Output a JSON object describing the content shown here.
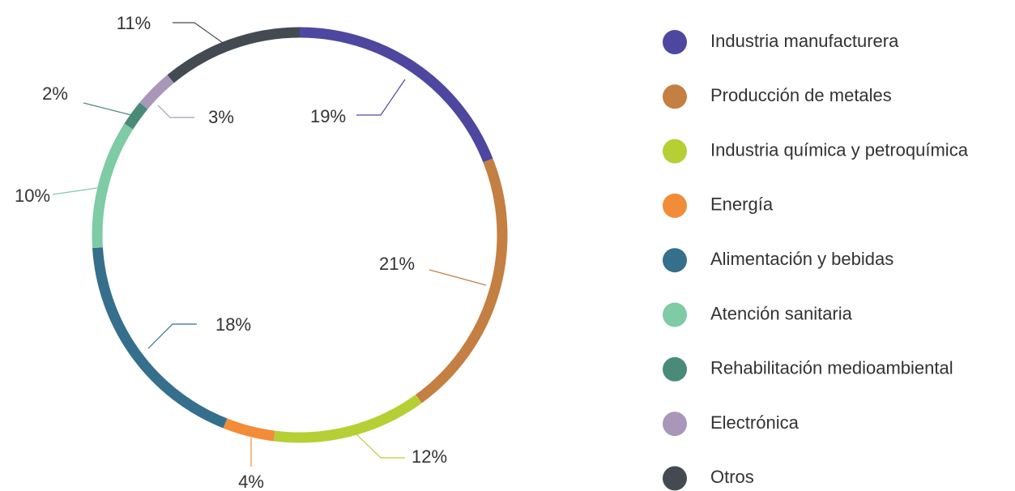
{
  "chart_data": {
    "type": "donut",
    "categories": [
      "Industria manufacturera",
      "Producción de metales",
      "Industria química y petroquímica",
      "Energía",
      "Alimentación y bebidas",
      "Atención sanitaria",
      "Rehabilitación medioambiental",
      "Electrónica",
      "Otros"
    ],
    "values": [
      19,
      21,
      12,
      4,
      18,
      10,
      2,
      3,
      11
    ],
    "value_labels": [
      "19%",
      "21%",
      "12%",
      "4%",
      "18%",
      "10%",
      "2%",
      "3%",
      "11%"
    ],
    "colors": [
      "#4e47a0",
      "#c47f42",
      "#b5cf35",
      "#f28c38",
      "#356f8c",
      "#7ecba6",
      "#4a8a78",
      "#a897b8",
      "#434a52"
    ],
    "legend": "right"
  }
}
